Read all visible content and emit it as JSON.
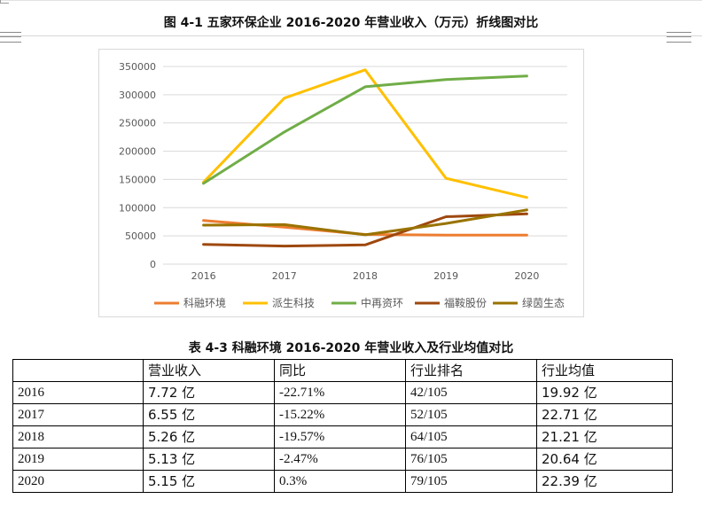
{
  "figure_caption": "图 4-1 五家环保企业 2016-2020 年营业收入（万元）折线图对比",
  "table_caption": "表 4-3 科融环境 2016-2020 年营业收入及行业均值对比",
  "chart_data": {
    "type": "line",
    "title": "",
    "xlabel": "",
    "ylabel": "",
    "x": [
      "2016",
      "2017",
      "2018",
      "2019",
      "2020"
    ],
    "ylim": [
      0,
      350000
    ],
    "yticks": [
      "0",
      "50000",
      "100000",
      "150000",
      "200000",
      "250000",
      "300000",
      "350000"
    ],
    "grid": true,
    "legend_position": "bottom",
    "series": [
      {
        "name": "科融环境",
        "color": "#ED7D31",
        "values": [
          77200,
          65500,
          52600,
          51300,
          51500
        ]
      },
      {
        "name": "派生科技",
        "color": "#FFC000",
        "values": [
          145000,
          294000,
          344000,
          152000,
          118000
        ]
      },
      {
        "name": "中再资环",
        "color": "#70AD47",
        "values": [
          143000,
          234000,
          314000,
          327000,
          333000
        ]
      },
      {
        "name": "福鞍股份",
        "color": "#9E480E",
        "values": [
          35000,
          32000,
          34000,
          84000,
          89000
        ]
      },
      {
        "name": "绿茵生态",
        "color": "#997300",
        "values": [
          69000,
          70000,
          52000,
          72000,
          96000
        ]
      }
    ]
  },
  "table": {
    "header": [
      "",
      "营业收入",
      "同比",
      "行业排名",
      "行业均值"
    ],
    "rows": [
      [
        "2016",
        "7.72 亿",
        "-22.71%",
        "42/105",
        "19.92 亿"
      ],
      [
        "2017",
        "6.55 亿",
        "-15.22%",
        "52/105",
        "22.71 亿"
      ],
      [
        "2018",
        "5.26 亿",
        "-19.57%",
        "64/105",
        "21.21 亿"
      ],
      [
        "2019",
        "5.13 亿",
        "-2.47%",
        "76/105",
        "20.64 亿"
      ],
      [
        "2020",
        "5.15 亿",
        "0.3%",
        "79/105",
        "22.39 亿"
      ]
    ]
  }
}
